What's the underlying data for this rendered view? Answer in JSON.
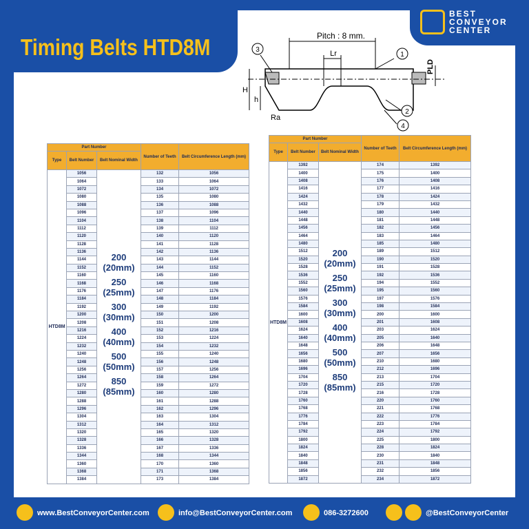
{
  "header": {
    "title": "Timing Belts HTD8M",
    "logo": [
      "BEST",
      "CONVEYOR",
      "CENTER"
    ]
  },
  "diagram": {
    "pitch": "Pitch : 8 mm.",
    "lr": "Lr",
    "pld": "PLD",
    "h_total": "H",
    "h": "h",
    "ra": "Ra",
    "callouts": [
      "1",
      "2",
      "3",
      "4"
    ]
  },
  "tables": [
    {
      "part_number": "Part Number",
      "type_header": "Type",
      "belt_number": "Belt Number",
      "nominal_width": "Belt Nominal Width",
      "teeth": "Number of Teeth",
      "circumference": "Belt Circumference Length (mm)",
      "type": "HTD8M",
      "widths": [
        [
          "200",
          "(20mm)"
        ],
        [
          "250",
          "(25mm)"
        ],
        [
          "300",
          "(30mm)"
        ],
        [
          "400",
          "(40mm)"
        ],
        [
          "500",
          "(50mm)"
        ],
        [
          "850",
          "(85mm)"
        ]
      ],
      "rows": [
        [
          "1056",
          "132",
          "1056"
        ],
        [
          "1064",
          "133",
          "1064"
        ],
        [
          "1072",
          "134",
          "1072"
        ],
        [
          "1080",
          "135",
          "1080"
        ],
        [
          "1088",
          "136",
          "1088"
        ],
        [
          "1096",
          "137",
          "1096"
        ],
        [
          "1104",
          "138",
          "1104"
        ],
        [
          "1112",
          "139",
          "1112"
        ],
        [
          "1120",
          "140",
          "1120"
        ],
        [
          "1128",
          "141",
          "1128"
        ],
        [
          "1136",
          "142",
          "1136"
        ],
        [
          "1144",
          "143",
          "1144"
        ],
        [
          "1152",
          "144",
          "1152"
        ],
        [
          "1160",
          "145",
          "1160"
        ],
        [
          "1168",
          "146",
          "1168"
        ],
        [
          "1176",
          "147",
          "1176"
        ],
        [
          "1184",
          "148",
          "1184"
        ],
        [
          "1192",
          "149",
          "1192"
        ],
        [
          "1200",
          "150",
          "1200"
        ],
        [
          "1208",
          "151",
          "1208"
        ],
        [
          "1216",
          "152",
          "1216"
        ],
        [
          "1224",
          "153",
          "1224"
        ],
        [
          "1232",
          "154",
          "1232"
        ],
        [
          "1240",
          "155",
          "1240"
        ],
        [
          "1248",
          "156",
          "1248"
        ],
        [
          "1256",
          "157",
          "1256"
        ],
        [
          "1264",
          "158",
          "1264"
        ],
        [
          "1272",
          "159",
          "1272"
        ],
        [
          "1280",
          "160",
          "1280"
        ],
        [
          "1288",
          "161",
          "1288"
        ],
        [
          "1296",
          "162",
          "1296"
        ],
        [
          "1304",
          "163",
          "1304"
        ],
        [
          "1312",
          "164",
          "1312"
        ],
        [
          "1320",
          "165",
          "1320"
        ],
        [
          "1328",
          "166",
          "1328"
        ],
        [
          "1336",
          "167",
          "1336"
        ],
        [
          "1344",
          "168",
          "1344"
        ],
        [
          "1360",
          "170",
          "1360"
        ],
        [
          "1368",
          "171",
          "1368"
        ],
        [
          "1384",
          "173",
          "1384"
        ]
      ]
    },
    {
      "part_number": "Part Number",
      "type_header": "Type",
      "belt_number": "Belt Number",
      "nominal_width": "Belt Nominal Width",
      "teeth": "Number of Teeth",
      "circumference": "Belt Circumference Length (mm)",
      "type": "HTD8M",
      "widths": [
        [
          "200",
          "(20mm)"
        ],
        [
          "250",
          "(25mm)"
        ],
        [
          "300",
          "(30mm)"
        ],
        [
          "400",
          "(40mm)"
        ],
        [
          "500",
          "(50mm)"
        ],
        [
          "850",
          "(85mm)"
        ]
      ],
      "rows": [
        [
          "1392",
          "174",
          "1392"
        ],
        [
          "1400",
          "175",
          "1400"
        ],
        [
          "1408",
          "176",
          "1408"
        ],
        [
          "1416",
          "177",
          "1416"
        ],
        [
          "1424",
          "178",
          "1424"
        ],
        [
          "1432",
          "179",
          "1432"
        ],
        [
          "1440",
          "180",
          "1440"
        ],
        [
          "1448",
          "181",
          "1448"
        ],
        [
          "1456",
          "182",
          "1456"
        ],
        [
          "1464",
          "183",
          "1464"
        ],
        [
          "1480",
          "185",
          "1480"
        ],
        [
          "1512",
          "189",
          "1512"
        ],
        [
          "1520",
          "190",
          "1520"
        ],
        [
          "1528",
          "191",
          "1528"
        ],
        [
          "1536",
          "192",
          "1536"
        ],
        [
          "1552",
          "194",
          "1552"
        ],
        [
          "1560",
          "195",
          "1560"
        ],
        [
          "1576",
          "197",
          "1576"
        ],
        [
          "1584",
          "198",
          "1584"
        ],
        [
          "1600",
          "200",
          "1600"
        ],
        [
          "1608",
          "201",
          "1608"
        ],
        [
          "1624",
          "203",
          "1624"
        ],
        [
          "1640",
          "205",
          "1640"
        ],
        [
          "1648",
          "206",
          "1648"
        ],
        [
          "1656",
          "207",
          "1656"
        ],
        [
          "1680",
          "210",
          "1680"
        ],
        [
          "1696",
          "212",
          "1696"
        ],
        [
          "1704",
          "213",
          "1704"
        ],
        [
          "1720",
          "215",
          "1720"
        ],
        [
          "1728",
          "216",
          "1728"
        ],
        [
          "1760",
          "220",
          "1760"
        ],
        [
          "1768",
          "221",
          "1768"
        ],
        [
          "1776",
          "222",
          "1776"
        ],
        [
          "1784",
          "223",
          "1784"
        ],
        [
          "1792",
          "224",
          "1792"
        ],
        [
          "1800",
          "225",
          "1800"
        ],
        [
          "1824",
          "228",
          "1824"
        ],
        [
          "1840",
          "230",
          "1840"
        ],
        [
          "1848",
          "231",
          "1848"
        ],
        [
          "1856",
          "232",
          "1856"
        ],
        [
          "1872",
          "234",
          "1872"
        ]
      ]
    }
  ],
  "footer": {
    "website": "www.BestConveyorCenter.com",
    "email": "info@BestConveyorCenter.com",
    "phone": "086-3272600",
    "social": "@BestConveyorCenter"
  }
}
